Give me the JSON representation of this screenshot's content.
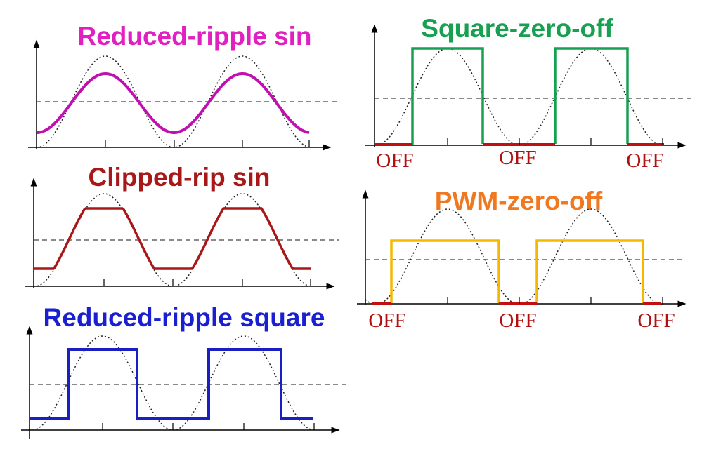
{
  "panels": [
    {
      "title": "Reduced-ripple sin"
    },
    {
      "title": "Clipped-rip sin"
    },
    {
      "title": "Reduced-ripple square"
    },
    {
      "title": "Square-zero-off",
      "labels": [
        "OFF",
        "OFF",
        "OFF"
      ]
    },
    {
      "title": "PWM-zero-off",
      "labels": [
        "OFF",
        "OFF",
        "OFF"
      ]
    }
  ]
}
